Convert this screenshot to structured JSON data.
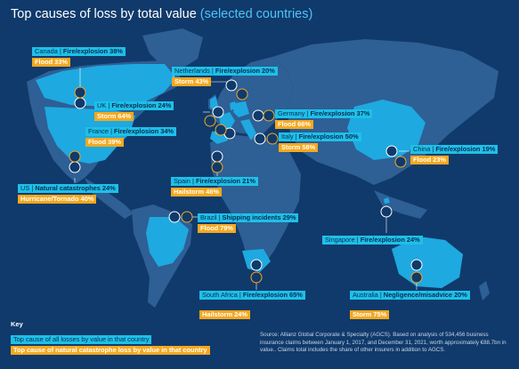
{
  "title": {
    "main": "Top causes of loss by total value",
    "accent": "(selected countries)"
  },
  "countries": [
    {
      "id": "canada",
      "country": "Canada",
      "cause": "Fire/explosion 38%",
      "natcat": "Flood 33%"
    },
    {
      "id": "netherlands",
      "country": "Netherlands",
      "cause": "Fire/explosion 20%",
      "natcat": "Storm 43%"
    },
    {
      "id": "uk",
      "country": "UK",
      "cause": "Fire/explosion 24%",
      "natcat": "Storm 64%"
    },
    {
      "id": "germany",
      "country": "Germany",
      "cause": "Fire/explosion 37%",
      "natcat": "Flood 66%"
    },
    {
      "id": "france",
      "country": "France",
      "cause": "Fire/explosion 34%",
      "natcat": "Flood 39%"
    },
    {
      "id": "italy",
      "country": "Italy",
      "cause": "Fire/explosion 50%",
      "natcat": "Storm 58%"
    },
    {
      "id": "china",
      "country": "China",
      "cause": "Fire/explosion 19%",
      "natcat": "Flood 23%"
    },
    {
      "id": "us",
      "country": "US",
      "cause": "Natural catastrophes 24%",
      "natcat": "Hurricane/Tornado 40%"
    },
    {
      "id": "spain",
      "country": "Spain",
      "cause": "Fire/explosion 21%",
      "natcat": "Hailstorm 46%"
    },
    {
      "id": "brazil",
      "country": "Brazil",
      "cause": "Shipping incidents 29%",
      "natcat": "Flood 79%"
    },
    {
      "id": "singapore",
      "country": "Singapore",
      "cause": "Fire/explosion 24%",
      "natcat": ""
    },
    {
      "id": "south_africa",
      "country": "South Africa",
      "cause": "Fire/explosion 65%",
      "natcat": "Hailstorm 24%"
    },
    {
      "id": "australia",
      "country": "Australia",
      "cause": "Negligence/misadvice 20%",
      "natcat": "Storm 75%"
    }
  ],
  "key": {
    "title": "Key",
    "blue_label": "Top cause of all losses by value in that country",
    "orange_label": "Top cause of natural catastrophe loss by value in that country"
  },
  "source": "Source: Allianz Global Corporate & Specialty (AGCS). Based on analysis of 534,456 business insurance claims between January 1, 2017, and December 31, 2021, worth approximately €88.7bn in value.. Claims total includes the share of other insurers in addition to AGCS.",
  "colors": {
    "background": "#103a6b",
    "land": "#2e5f95",
    "highlight": "#1ea9e1",
    "blue_label": "#1ec0e8",
    "orange_label": "#f6a81e"
  },
  "icons": [
    "fire-icon",
    "flood-icon",
    "storm-icon",
    "hurricane-icon",
    "hail-icon",
    "ship-icon",
    "negligence-icon"
  ]
}
